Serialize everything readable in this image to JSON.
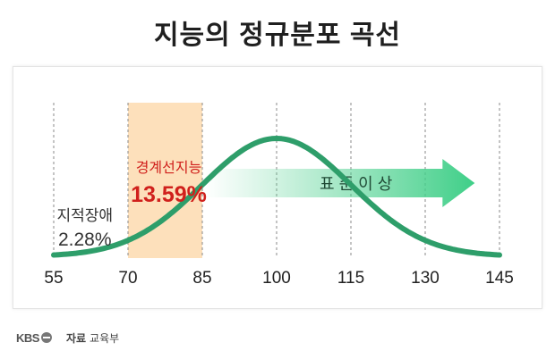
{
  "title": "지능의 정규분포 곡선",
  "footer": {
    "brand": "KBS",
    "source_label": "자료",
    "source_value": "교육부"
  },
  "colors": {
    "curve": "#2e9e6a",
    "highlight_band": "#fde0bb",
    "arrow": "#4fd08f",
    "accent_red": "#d0201c",
    "text_dark": "#333333"
  },
  "chart_data": {
    "type": "line",
    "title": "지능의 정규분포 곡선",
    "xlabel": "",
    "ylabel": "",
    "x_ticks": [
      55,
      70,
      85,
      100,
      115,
      130,
      145
    ],
    "xlim": [
      55,
      145
    ],
    "grid": "vertical-dashed",
    "series": [
      {
        "distribution": "normal",
        "mean": 100,
        "std": 15
      }
    ],
    "highlight_band": {
      "x_start": 70,
      "x_end": 85
    },
    "annotations": [
      {
        "label": "지적장애",
        "value": "2.28%",
        "x": 62
      },
      {
        "label": "경계선지능",
        "value": "13.59%",
        "x": 77.5
      },
      {
        "label": "표 준 이 상",
        "type": "arrow",
        "x_start": 85,
        "x_end": 140
      }
    ]
  }
}
